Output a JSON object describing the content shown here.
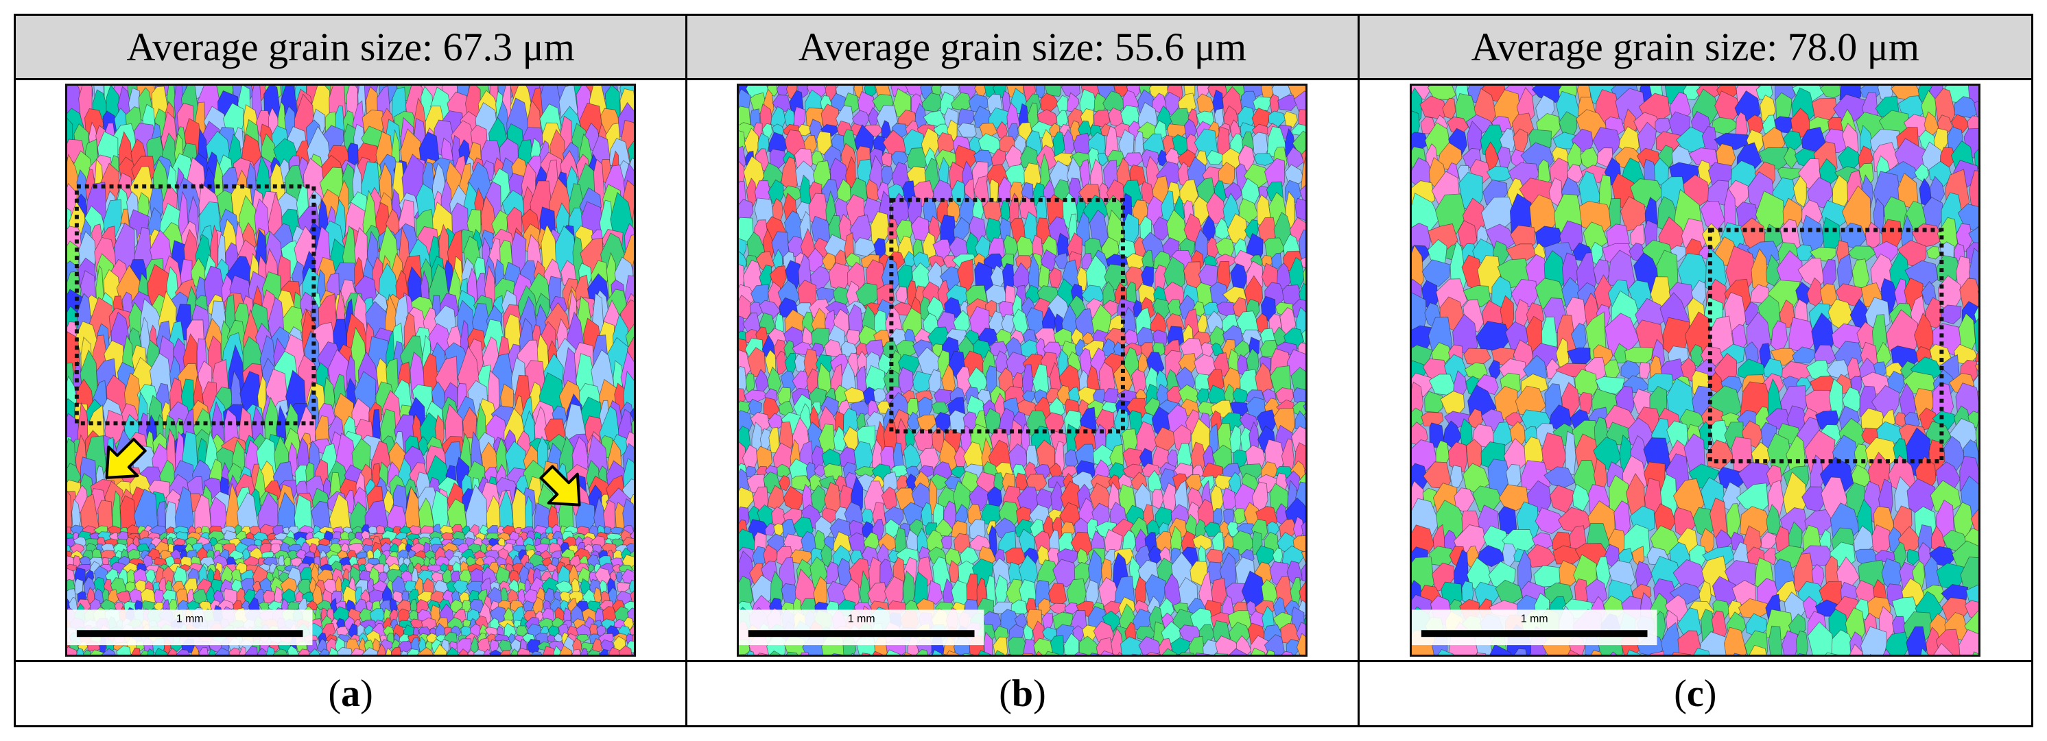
{
  "figure": {
    "panels": [
      {
        "id": "a",
        "header": "Average grain size: 67.3 μm",
        "caption_open": "(",
        "caption_letter": "a",
        "caption_close": ")",
        "scale_bar_label": "1 mm",
        "seed": 11,
        "has_arrows": true,
        "arrow_icons": [
          "arrow-down-left-icon",
          "arrow-down-right-icon"
        ],
        "arrow_color": "#ffee00",
        "fine_bottom": true
      },
      {
        "id": "b",
        "header": "Average grain size: 55.6 μm",
        "caption_open": "(",
        "caption_letter": "b",
        "caption_close": ")",
        "scale_bar_label": "1 mm",
        "seed": 23,
        "has_arrows": false,
        "fine_bottom": false
      },
      {
        "id": "c",
        "header": "Average grain size: 78.0 μm",
        "caption_open": "(",
        "caption_letter": "c",
        "caption_close": ")",
        "scale_bar_label": "1 mm",
        "seed": 37,
        "has_arrows": false,
        "fine_bottom": false
      }
    ],
    "colors": {
      "header_bg": "#d6d6d6",
      "dotted_box": "#111111",
      "grain_boundary": "#222222",
      "grain_palette": [
        "#ff5c8a",
        "#3fd17a",
        "#5b8cff",
        "#b26bff",
        "#ff6b6b",
        "#35d6e0",
        "#f6e33b",
        "#ff8ad8",
        "#7cf05a",
        "#2f3cff",
        "#a05cff",
        "#ff4f4f",
        "#5effc8",
        "#ff9f40",
        "#9ecbff",
        "#d56bff",
        "#55e06a",
        "#6f7cff",
        "#ff6fb5",
        "#00c9a7"
      ]
    }
  }
}
